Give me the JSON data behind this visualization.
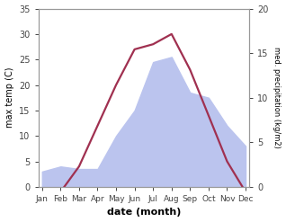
{
  "months": [
    "Jan",
    "Feb",
    "Mar",
    "Apr",
    "May",
    "Jun",
    "Jul",
    "Aug",
    "Sep",
    "Oct",
    "Nov",
    "Dec"
  ],
  "temp": [
    -2,
    -1,
    4,
    12,
    20,
    27,
    28,
    30,
    23,
    14,
    5,
    -1
  ],
  "precip": [
    6,
    8,
    7,
    7,
    20,
    30,
    49,
    51,
    37,
    35,
    24,
    16
  ],
  "temp_color": "#a03050",
  "precip_fill_color": "#bbc4ee",
  "temp_ylim": [
    0,
    35
  ],
  "precip_ylim": [
    0,
    70
  ],
  "xlabel": "date (month)",
  "ylabel_left": "max temp (C)",
  "ylabel_right": "med. precipitation (kg/m2)",
  "right_yticks": [
    0,
    5,
    10,
    15,
    20
  ],
  "right_ytick_vals": [
    0,
    17.5,
    35,
    52.5,
    70
  ],
  "bg_color": "#ffffff"
}
